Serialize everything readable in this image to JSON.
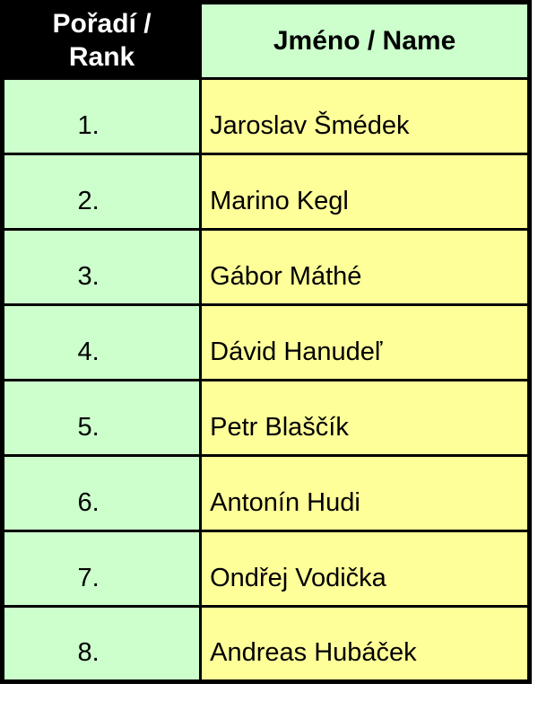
{
  "colors": {
    "header_bg": "#000000",
    "header_text": "#ffffff",
    "rank_bg": "#ccffcc",
    "name_bg": "#ffff99",
    "border": "#000000",
    "cell_text": "#000000"
  },
  "table": {
    "header": {
      "rank_line1": "Pořadí /",
      "rank_line2": "Rank",
      "name": "Jméno / Name"
    },
    "rows": [
      {
        "rank": "1.",
        "name": "Jaroslav Šmédek"
      },
      {
        "rank": "2.",
        "name": "Marino Kegl"
      },
      {
        "rank": "3.",
        "name": "Gábor Máthé"
      },
      {
        "rank": "4.",
        "name": "Dávid Hanudeľ"
      },
      {
        "rank": "5.",
        "name": "Petr Blaščík"
      },
      {
        "rank": "6.",
        "name": "Antonín Hudi"
      },
      {
        "rank": "7.",
        "name": "Ondřej Vodička"
      },
      {
        "rank": "8.",
        "name": "Andreas Hubáček"
      }
    ]
  }
}
